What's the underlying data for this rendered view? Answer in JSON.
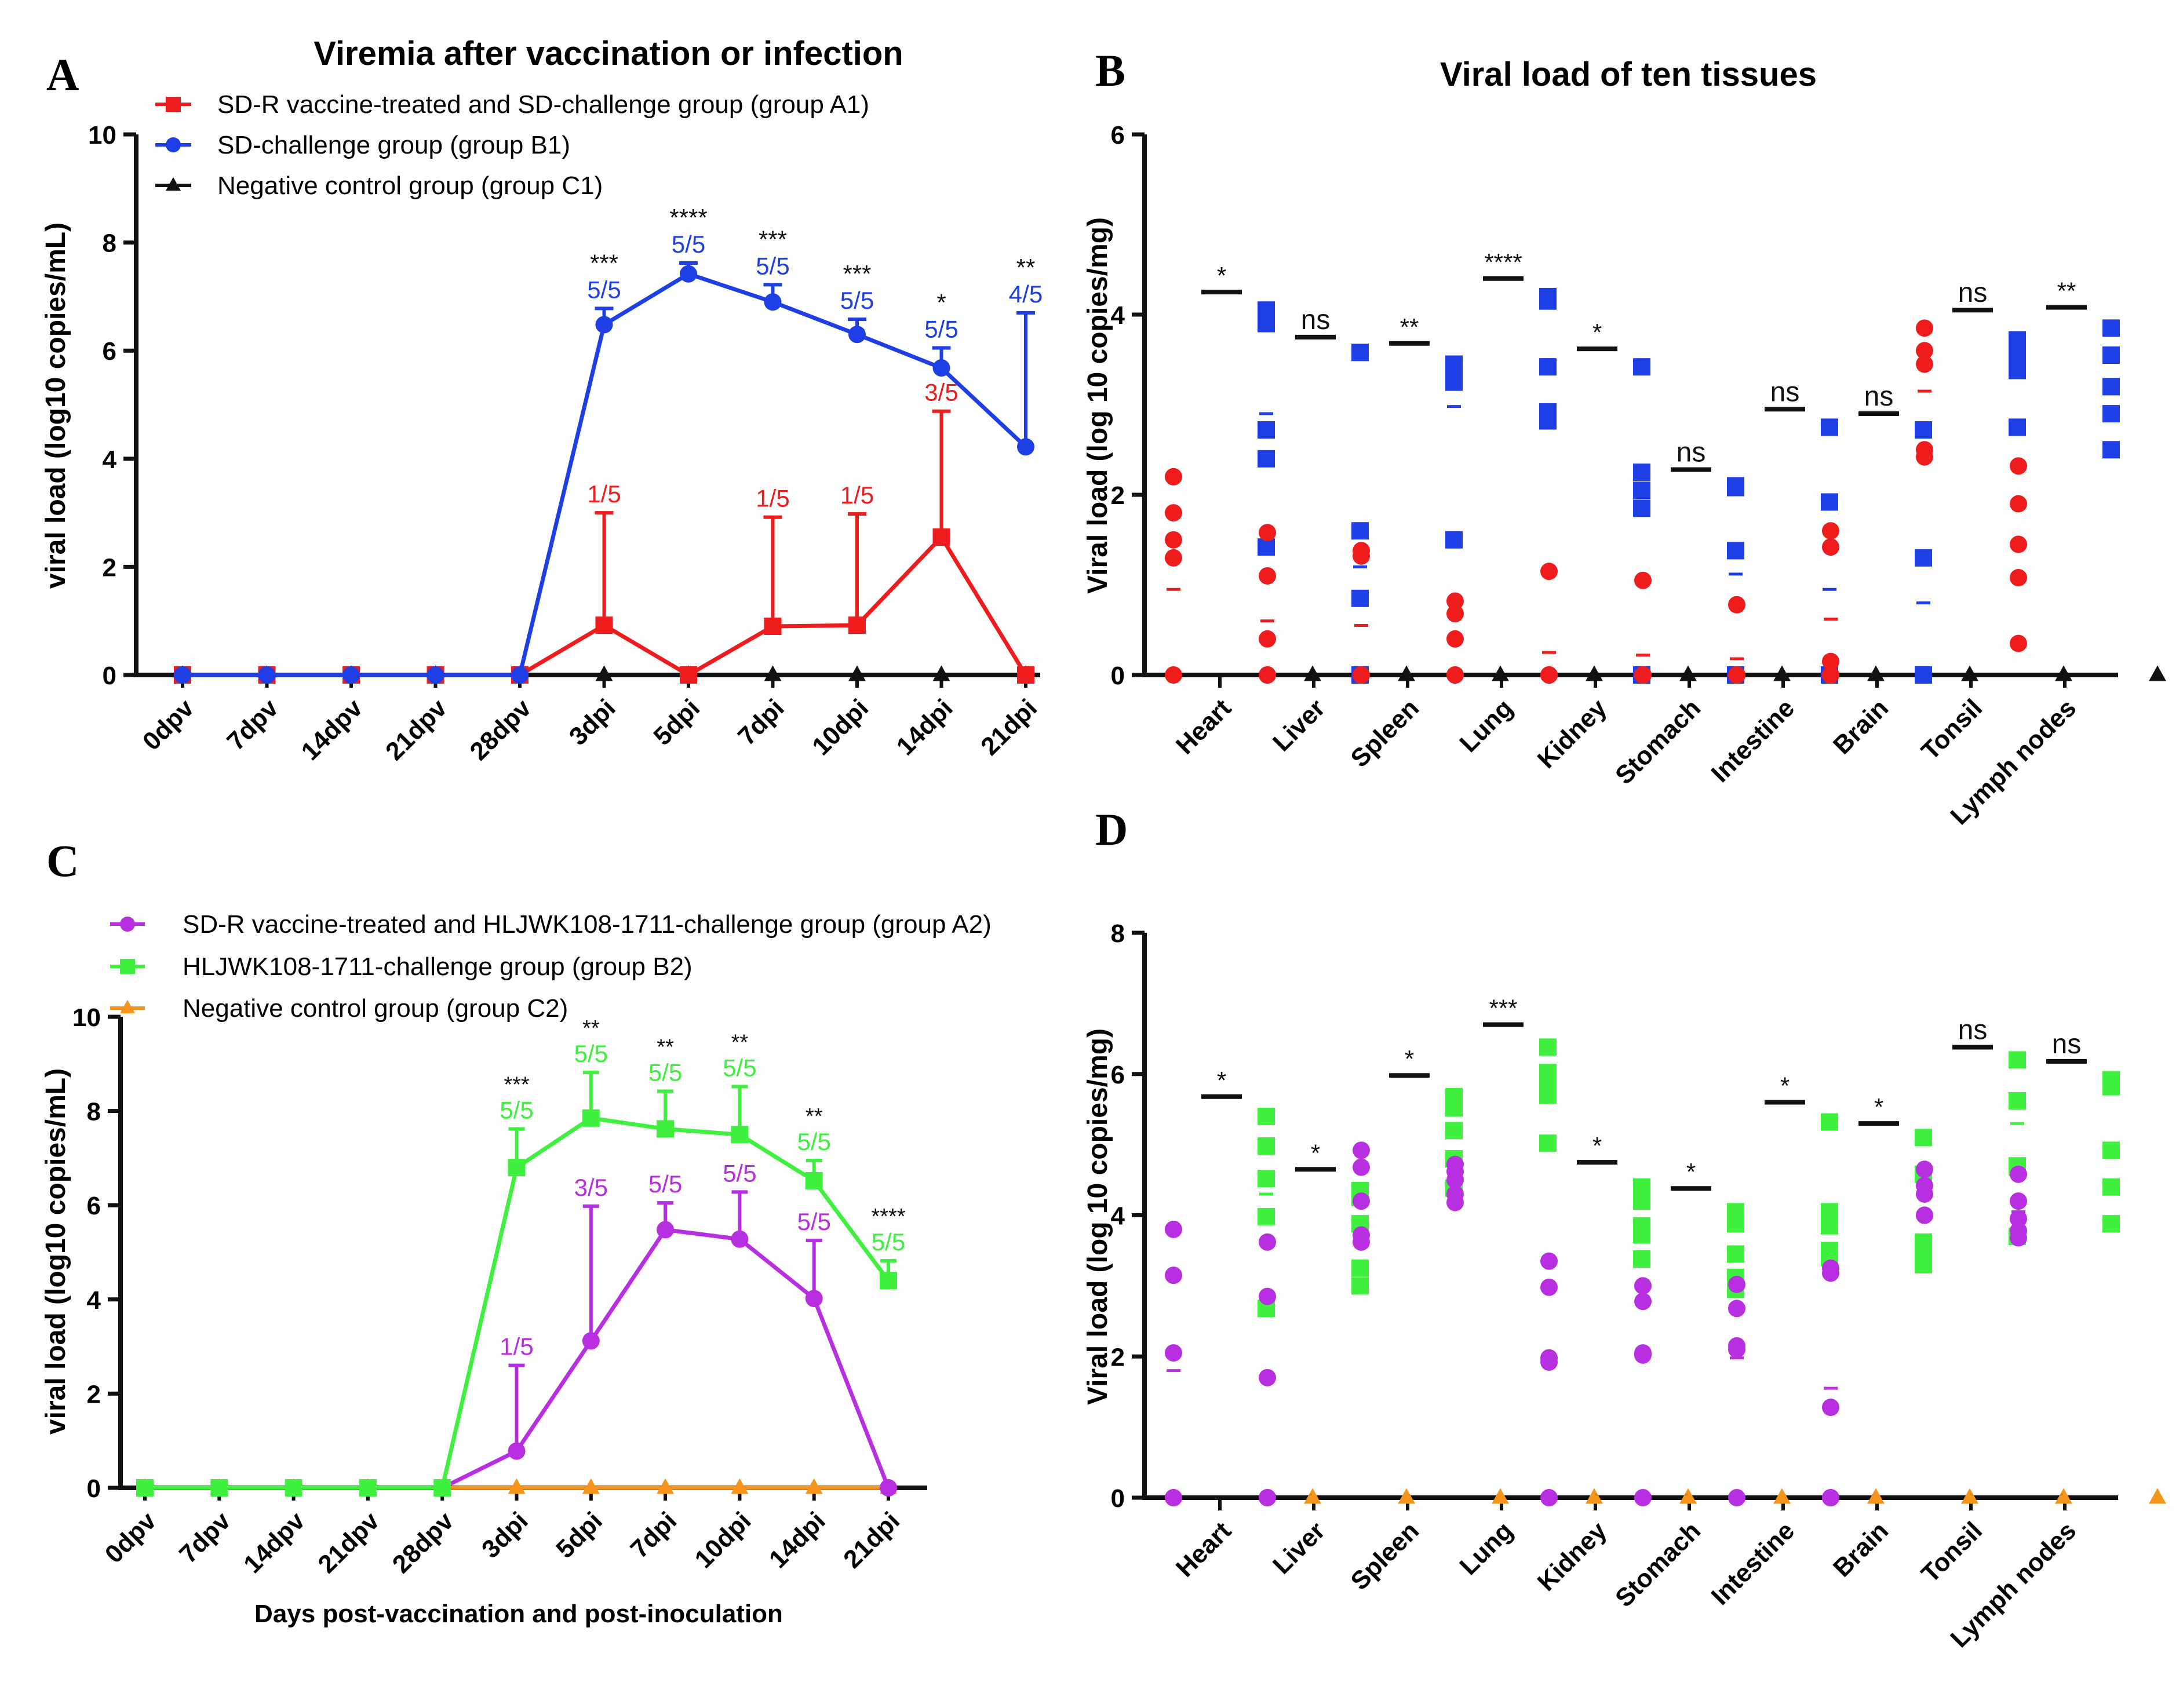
{
  "figure": {
    "panel_letters": [
      "A",
      "B",
      "C",
      "D"
    ]
  },
  "chart_data": [
    {
      "panel": "A",
      "type": "line",
      "title": "Viremia after vaccination or infection",
      "xlabel": "",
      "ylabel": "viral load (log10 copies/mL)",
      "ylim": [
        0,
        10
      ],
      "yticks": [
        0,
        2,
        4,
        6,
        8,
        10
      ],
      "categories": [
        "0dpv",
        "7dpv",
        "14dpv",
        "21dpv",
        "28dpv",
        "3dpi",
        "5dpi",
        "7dpi",
        "10dpi",
        "14dpi",
        "21dpi"
      ],
      "series": [
        {
          "name": "SD-R vaccine-treated and SD-challenge group (group A1)",
          "color": "#ee1c1c",
          "marker": "square",
          "values": [
            0,
            0,
            0,
            0,
            0,
            0.92,
            0,
            0.9,
            0.92,
            2.55,
            0
          ],
          "error_upper": [
            null,
            null,
            null,
            null,
            null,
            3.0,
            null,
            2.92,
            2.98,
            4.88,
            null
          ],
          "labels": [
            null,
            null,
            null,
            null,
            null,
            "1/5",
            null,
            "1/5",
            "1/5",
            "3/5",
            null
          ]
        },
        {
          "name": "SD-challenge group  (group B1)",
          "color": "#1e3fe6",
          "marker": "circle",
          "values": [
            0,
            0,
            0,
            0,
            0,
            6.48,
            7.42,
            6.9,
            6.3,
            5.68,
            4.22
          ],
          "error_upper": [
            null,
            null,
            null,
            null,
            null,
            6.78,
            7.62,
            7.22,
            6.58,
            6.05,
            6.7
          ],
          "labels": [
            null,
            null,
            null,
            null,
            null,
            "5/5",
            "5/5",
            "5/5",
            "5/5",
            "5/5",
            "4/5"
          ]
        },
        {
          "name": "Negative control group  (group C1)",
          "color": "#111111",
          "marker": "triangle",
          "values": [
            0,
            0,
            0,
            0,
            0,
            0,
            0,
            0,
            0,
            0,
            0
          ]
        }
      ],
      "significance": [
        null,
        null,
        null,
        null,
        null,
        "***",
        "****",
        "***",
        "***",
        "*",
        "**"
      ]
    },
    {
      "panel": "B",
      "type": "scatter",
      "title": "Viral load of ten tissues",
      "ylabel": "Viral load (log 10 copies/mg)",
      "ylim": [
        0,
        6
      ],
      "yticks": [
        0,
        2,
        4,
        6
      ],
      "categories": [
        "Heart",
        "Liver",
        "Spleen",
        "Lung",
        "Kidney",
        "Stomach",
        "Intestine",
        "Brain",
        "Tonsil",
        "Lymph nodes"
      ],
      "series": [
        {
          "name": "SD-R vaccine-treated and SD-challenge group (group A1)",
          "color": "#ee1c1c",
          "marker": "circle",
          "points": [
            [
              2.2,
              1.8,
              1.5,
              1.3,
              0
            ],
            [
              1.58,
              1.1,
              0.4,
              0,
              0
            ],
            [
              1.38,
              1.32,
              0,
              0,
              0
            ],
            [
              0.82,
              0.68,
              0.4,
              0,
              0
            ],
            [
              1.15,
              0,
              0,
              0,
              0
            ],
            [
              1.05,
              0,
              0,
              0,
              0
            ],
            [
              0.78,
              0,
              0,
              0,
              0
            ],
            [
              1.6,
              1.42,
              0.15,
              0,
              0
            ],
            [
              3.85,
              3.6,
              3.45,
              2.5,
              2.42
            ],
            [
              2.32,
              1.9,
              1.45,
              1.08,
              0.35
            ]
          ],
          "means": [
            0.95,
            0.6,
            0.55,
            0.05,
            0.25,
            0.22,
            0.18,
            0.62,
            3.15,
            1.42
          ]
        },
        {
          "name": "SD-challenge group  (group B1)",
          "color": "#1e3fe6",
          "marker": "square",
          "points": [
            [
              4.05,
              3.9,
              2.72,
              2.4,
              1.42
            ],
            [
              3.58,
              1.6,
              0.85,
              0,
              0
            ],
            [
              3.45,
              3.4,
              3.3,
              3.25,
              1.5
            ],
            [
              4.2,
              4.15,
              3.42,
              2.92,
              2.82
            ],
            [
              3.42,
              2.25,
              2.05,
              1.85,
              0
            ],
            [
              2.1,
              2.08,
              1.38,
              0,
              0
            ],
            [
              2.75,
              1.92,
              0,
              0,
              0
            ],
            [
              2.72,
              1.3,
              0,
              0,
              0
            ],
            [
              3.72,
              3.62,
              3.45,
              3.38,
              2.75
            ],
            [
              3.85,
              3.55,
              3.2,
              2.9,
              2.5
            ]
          ],
          "means": [
            2.9,
            1.2,
            2.98,
            3.5,
            1.92,
            1.12,
            0.95,
            0.8,
            3.38,
            3.2
          ]
        },
        {
          "name": "Negative control group  (group C1)",
          "color": "#111111",
          "marker": "triangle",
          "points": [
            [
              0
            ],
            [
              0
            ],
            [
              0
            ],
            [
              0
            ],
            [
              0
            ],
            [
              0
            ],
            [
              0
            ],
            [
              0
            ],
            [
              0
            ],
            [
              0
            ]
          ]
        }
      ],
      "significance": [
        "*",
        "ns",
        "**",
        "****",
        "*",
        "ns",
        "ns",
        "ns",
        "ns",
        "**"
      ],
      "significance_bar_levels": [
        4.25,
        3.75,
        3.68,
        4.4,
        3.62,
        2.28,
        2.95,
        2.9,
        4.05,
        4.08
      ]
    },
    {
      "panel": "C",
      "type": "line",
      "title": "",
      "xlabel": "Days post-vaccination and post-inoculation",
      "ylabel": "viral load (log10 copies/mL)",
      "ylim": [
        0,
        10
      ],
      "yticks": [
        0,
        2,
        4,
        6,
        8,
        10
      ],
      "categories": [
        "0dpv",
        "7dpv",
        "14dpv",
        "21dpv",
        "28dpv",
        "3dpi",
        "5dpi",
        "7dpi",
        "10dpi",
        "14dpi",
        "21dpi"
      ],
      "series": [
        {
          "name": "SD-R vaccine-treated and HLJWK108-1711-challenge group (group A2)",
          "color": "#b72fe0",
          "marker": "circle",
          "values": [
            0,
            0,
            0,
            0,
            0,
            0.78,
            3.12,
            5.48,
            5.28,
            4.02,
            0
          ],
          "error_upper": [
            null,
            null,
            null,
            null,
            null,
            2.6,
            5.98,
            6.05,
            6.28,
            5.25,
            null
          ],
          "labels": [
            null,
            null,
            null,
            null,
            null,
            "1/5",
            "3/5",
            "5/5",
            "5/5",
            "5/5",
            null
          ]
        },
        {
          "name": "HLJWK108-1711-challenge group  (group B2)",
          "color": "#3ff03f",
          "marker": "square",
          "values": [
            0,
            0,
            0,
            0,
            0,
            6.8,
            7.85,
            7.62,
            7.5,
            6.52,
            4.4
          ],
          "error_upper": [
            null,
            null,
            null,
            null,
            null,
            7.62,
            8.82,
            8.42,
            8.52,
            6.95,
            4.82
          ],
          "labels": [
            null,
            null,
            null,
            null,
            null,
            "5/5",
            "5/5",
            "5/5",
            "5/5",
            "5/5",
            "5/5"
          ]
        },
        {
          "name": "Negative control group  (group C2)",
          "color": "#f5951c",
          "marker": "triangle",
          "values": [
            0,
            0,
            0,
            0,
            0,
            0,
            0,
            0,
            0,
            0,
            0
          ]
        }
      ],
      "significance": [
        null,
        null,
        null,
        null,
        null,
        "***",
        "**",
        "**",
        "**",
        "**",
        "****"
      ]
    },
    {
      "panel": "D",
      "type": "scatter",
      "title": "",
      "ylabel": "Viral load (log 10 copies/mg)",
      "ylim": [
        0,
        8
      ],
      "yticks": [
        0,
        2,
        4,
        6,
        8
      ],
      "categories": [
        "Heart",
        "Liver",
        "Spleen",
        "Lung",
        "Kidney",
        "Stomach",
        "Intestine",
        "Brain",
        "Tonsil",
        "Lymph nodes"
      ],
      "series": [
        {
          "name": "SD-R vaccine-treated and HLJWK108-1711-challenge group (group A2)",
          "color": "#b72fe0",
          "marker": "circle",
          "points": [
            [
              3.8,
              3.15,
              2.05,
              0,
              0
            ],
            [
              3.62,
              2.85,
              1.7,
              0,
              0
            ],
            [
              4.92,
              4.68,
              4.2,
              3.72,
              3.62
            ],
            [
              4.72,
              4.62,
              4.5,
              4.3,
              4.18
            ],
            [
              3.35,
              2.98,
              1.98,
              1.92,
              0
            ],
            [
              3.0,
              2.78,
              2.05,
              2.02,
              0
            ],
            [
              3.02,
              2.68,
              2.15,
              2.1,
              0
            ],
            [
              3.25,
              3.18,
              1.28,
              0,
              0
            ],
            [
              4.65,
              4.42,
              4.3,
              4.0,
              4.0
            ],
            [
              4.58,
              4.2,
              3.95,
              3.78,
              3.68
            ]
          ],
          "means": [
            1.8,
            1.65,
            4.25,
            4.45,
            1.95,
            1.98,
            1.98,
            1.55,
            4.3,
            4.05
          ]
        },
        {
          "name": "HLJWK108-1711-challenge group  (group B2)",
          "color": "#3ff03f",
          "marker": "square",
          "points": [
            [
              5.4,
              4.98,
              4.52,
              3.98,
              2.68
            ],
            [
              4.35,
              4.25,
              3.88,
              3.25,
              3.0
            ],
            [
              5.68,
              5.52,
              5.2,
              4.8,
              4.38
            ],
            [
              6.38,
              6.02,
              5.88,
              5.7,
              5.02
            ],
            [
              4.4,
              4.2,
              3.85,
              3.72,
              3.38
            ],
            [
              4.05,
              3.88,
              3.45,
              3.12,
              2.95
            ],
            [
              5.32,
              4.05,
              3.85,
              3.5,
              3.4
            ],
            [
              5.1,
              4.58,
              3.62,
              3.38,
              3.3
            ],
            [
              6.2,
              5.62,
              4.7,
              4.68,
              3.7
            ],
            [
              5.92,
              5.82,
              4.92,
              4.4,
              3.88
            ]
          ],
          "means": [
            4.3,
            3.9,
            5.15,
            5.8,
            3.9,
            3.4,
            4.05,
            3.98,
            5.3,
            4.95
          ]
        },
        {
          "name": "Negative control group  (group C2)",
          "color": "#f5951c",
          "marker": "triangle",
          "points": [
            [
              0
            ],
            [
              0
            ],
            [
              0
            ],
            [
              0
            ],
            [
              0
            ],
            [
              0
            ],
            [
              0
            ],
            [
              0
            ],
            [
              0
            ],
            [
              0
            ]
          ]
        }
      ],
      "significance": [
        "*",
        "*",
        "*",
        "***",
        "*",
        "*",
        "*",
        "*",
        "ns",
        "ns"
      ],
      "significance_bar_levels": [
        5.68,
        4.65,
        5.98,
        6.7,
        4.75,
        4.38,
        5.6,
        5.3,
        6.38,
        6.18
      ]
    }
  ]
}
